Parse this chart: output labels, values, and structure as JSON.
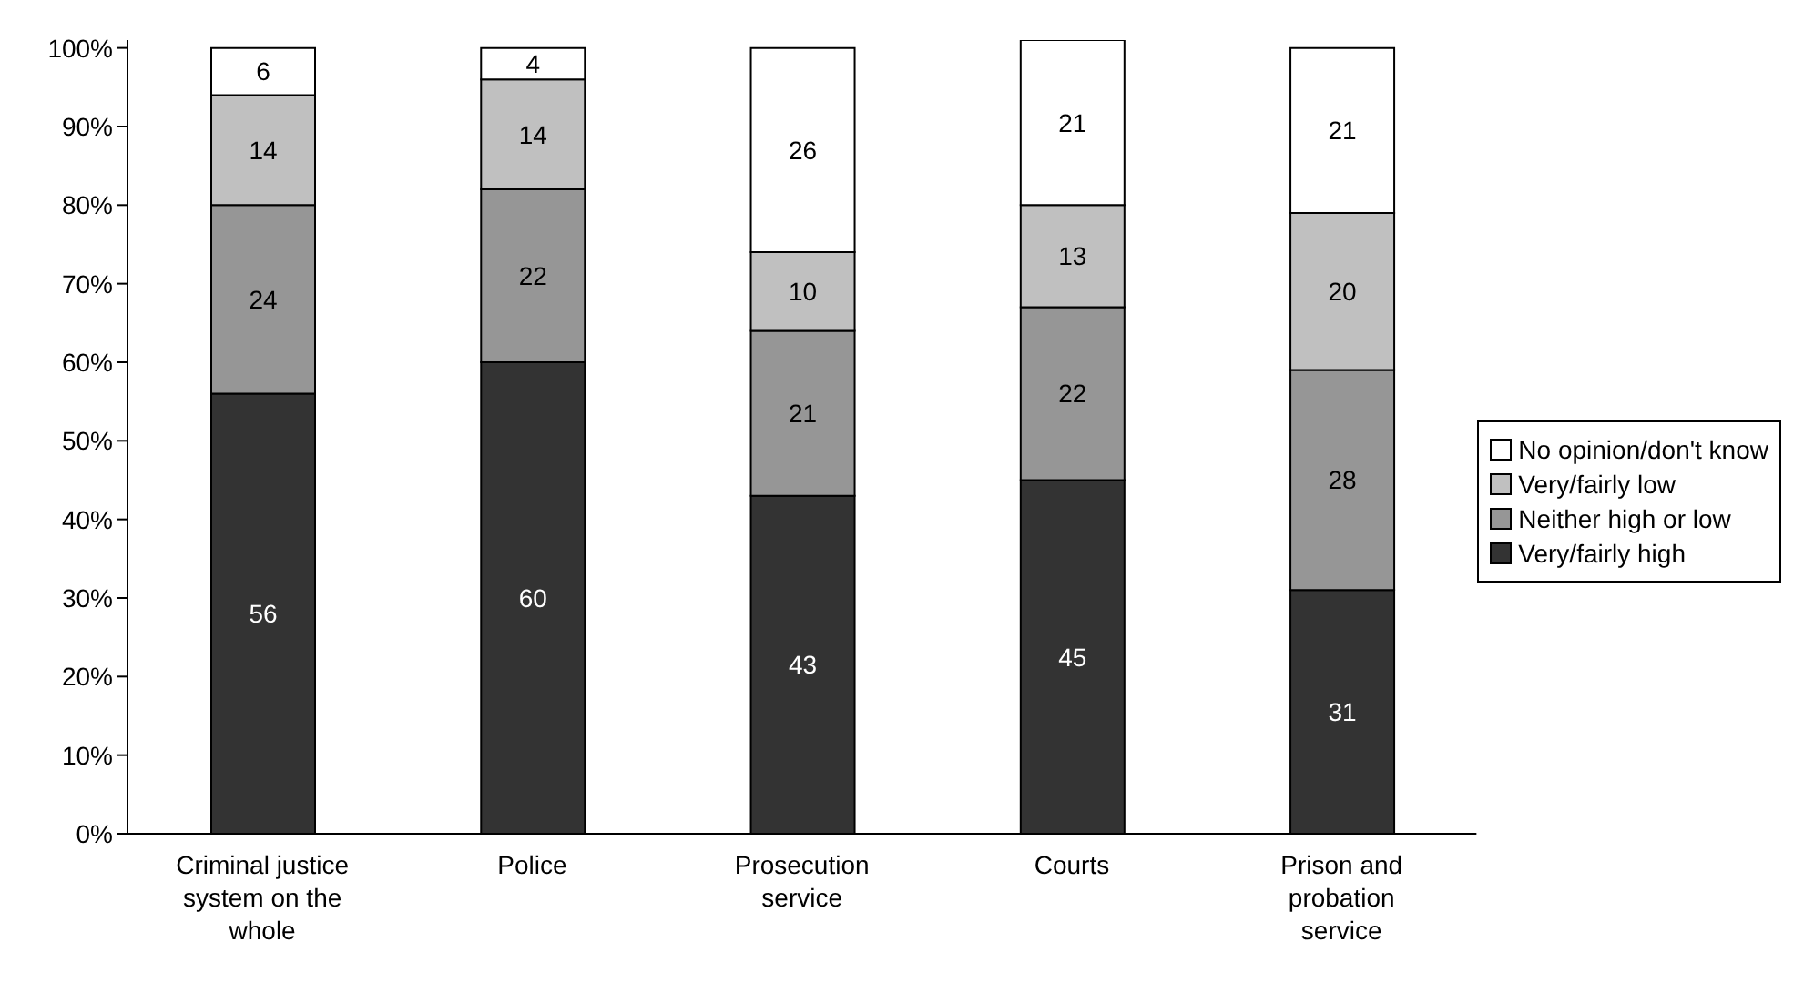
{
  "chart_data": {
    "type": "bar",
    "stacked": true,
    "categories": [
      "Criminal justice system on the whole",
      "Police",
      "Prosecution service",
      "Courts",
      "Prison and probation service"
    ],
    "series": [
      {
        "name": "Very/fairly high",
        "color": "#333333",
        "values": [
          56,
          60,
          43,
          45,
          31
        ]
      },
      {
        "name": "Neither high or low",
        "color": "#969696",
        "values": [
          24,
          22,
          21,
          22,
          28
        ]
      },
      {
        "name": "Very/fairly low",
        "color": "#c0c0c0",
        "values": [
          14,
          14,
          10,
          13,
          20
        ]
      },
      {
        "name": "No opinion/don't know",
        "color": "#ffffff",
        "values": [
          6,
          4,
          26,
          21,
          21
        ]
      }
    ],
    "ylim": [
      0,
      101
    ],
    "yticks": [
      {
        "value": 0,
        "label": "0%"
      },
      {
        "value": 10,
        "label": "10%"
      },
      {
        "value": 20,
        "label": "20%"
      },
      {
        "value": 30,
        "label": "30%"
      },
      {
        "value": 40,
        "label": "40%"
      },
      {
        "value": 50,
        "label": "50%"
      },
      {
        "value": 60,
        "label": "60%"
      },
      {
        "value": 70,
        "label": "70%"
      },
      {
        "value": 80,
        "label": "80%"
      },
      {
        "value": 90,
        "label": "90%"
      },
      {
        "value": 100,
        "label": "100%"
      }
    ],
    "data_labels": true,
    "legend": "right",
    "grid": false
  }
}
